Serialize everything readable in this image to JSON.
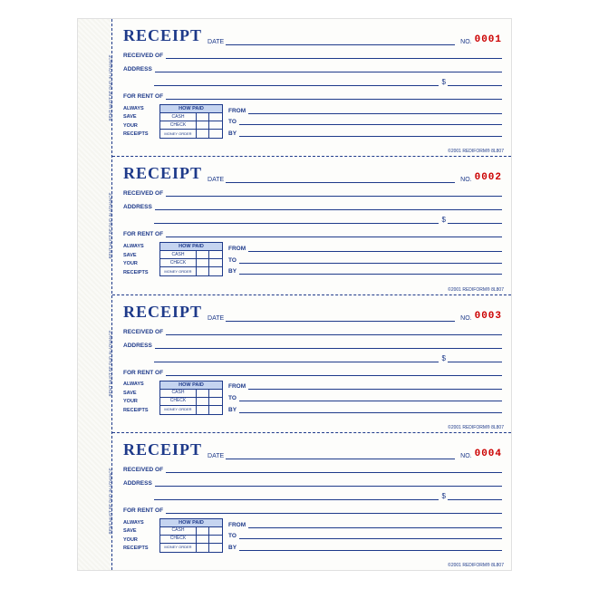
{
  "title": "RECEIPT",
  "labels": {
    "date": "DATE",
    "no": "NO.",
    "received_of": "RECEIVED OF",
    "address": "ADDRESS",
    "for_rent_of": "FOR RENT OF",
    "dollar": "$",
    "always": "ALWAYS",
    "save": "SAVE",
    "your": "YOUR",
    "receipts": "RECEIPTS",
    "how_paid": "HOW PAID",
    "cash": "CASH",
    "check": "CHECK",
    "money_order": "MONEY ORDER",
    "from": "FROM",
    "to": "TO",
    "by": "BY",
    "side_note": "RENT MUST BE PAID IN ADVANCE"
  },
  "copyright": "©2001 REDIFORM® 8L807",
  "colors": {
    "primary": "#1e3a8a",
    "number": "#cc0000",
    "table_header_bg": "#c5d4f0",
    "paper": "#fdfdfb"
  },
  "receipts": [
    {
      "number": "0001"
    },
    {
      "number": "0002"
    },
    {
      "number": "0003"
    },
    {
      "number": "0004"
    }
  ]
}
